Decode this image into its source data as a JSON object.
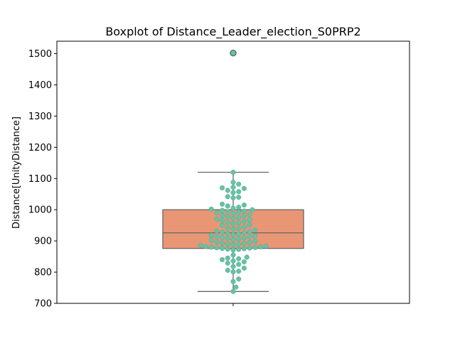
{
  "chart_data": {
    "type": "boxplot",
    "title": "Boxplot of Distance_Leader_election_S0PRP2",
    "xlabel": "",
    "ylabel": "Distance[UnityDistance]",
    "ylim": [
      700,
      1540
    ],
    "yticks": [
      700,
      800,
      900,
      1000,
      1100,
      1200,
      1300,
      1400,
      1500
    ],
    "xticks": [
      ""
    ],
    "grid": false,
    "legend": "none",
    "box": {
      "q1": 876,
      "median": 926,
      "q3": 1000,
      "whisker_low": 738,
      "whisker_high": 1120,
      "outliers": [
        1502
      ]
    },
    "points": [
      738,
      752,
      770,
      778,
      801,
      803,
      806,
      813,
      818,
      825,
      829,
      833,
      836,
      840,
      843,
      845,
      848,
      855,
      871,
      873,
      874,
      875,
      876,
      877,
      878,
      879,
      880,
      881,
      882,
      884,
      886,
      888,
      889,
      890,
      892,
      893,
      895,
      897,
      899,
      902,
      904,
      906,
      908,
      910,
      911,
      913,
      914,
      916,
      918,
      920,
      922,
      924,
      926,
      928,
      930,
      932,
      935,
      938,
      940,
      942,
      945,
      950,
      952,
      955,
      958,
      960,
      963,
      966,
      968,
      970,
      972,
      975,
      978,
      980,
      982,
      985,
      988,
      990,
      992,
      994,
      996,
      998,
      1000,
      1002,
      1005,
      1008,
      1012,
      1015,
      1018,
      1038,
      1040,
      1042,
      1055,
      1058,
      1062,
      1068,
      1070,
      1072,
      1082,
      1088,
      1120,
      1502
    ],
    "colors": {
      "box_fill": "#e99675",
      "box_edge": "#666666",
      "points": "#66c2a5",
      "point_edge": "#5aa88f",
      "outlier_fill": "#66c2a5",
      "outlier_edge": "#555555"
    }
  }
}
